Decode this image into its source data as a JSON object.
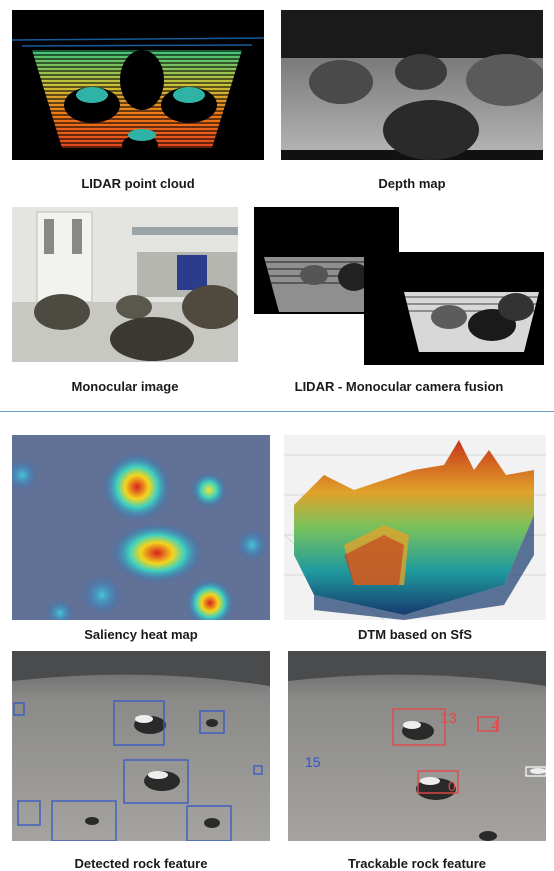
{
  "captions": {
    "lidar": "LIDAR point cloud",
    "depth": "Depth map",
    "mono": "Monocular image",
    "fusion": "LIDAR - Monocular camera fusion",
    "saliency": "Saliency heat map",
    "dtm": "DTM based on SfS",
    "detected": "Detected rock feature",
    "trackable": "Trackable rock feature"
  },
  "trackable_labels": {
    "a": "13",
    "b": "4",
    "c": "15",
    "d": "0"
  },
  "colors": {
    "separator": "#6fa0cc",
    "detect_box": "#3a5cc4",
    "track_box": "#e34a4a",
    "track_blue": "#2f55c8"
  }
}
